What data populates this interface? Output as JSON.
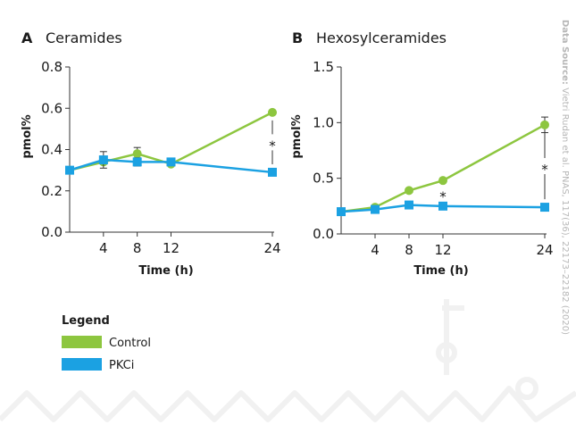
{
  "colors": {
    "control": "#8dc63f",
    "pkci": "#1ba1e2",
    "axis": "#333333",
    "deco": "#f1f1f1"
  },
  "source_note": {
    "label": "Data Source:",
    "text": "Vietri Rudan et al. PNAS, 117(36), 22173–22182 (2020)"
  },
  "legend": {
    "title": "Legend",
    "items": [
      {
        "label": "Control",
        "color": "#8dc63f"
      },
      {
        "label": "PKCi",
        "color": "#1ba1e2"
      }
    ]
  },
  "chart_data": [
    {
      "type": "line",
      "panel": "A",
      "title": "Ceramides",
      "xlabel": "Time (h)",
      "ylabel": "pmol%",
      "x": [
        0,
        4,
        8,
        12,
        24
      ],
      "xticks": [
        4,
        8,
        12,
        24
      ],
      "xticklabels": [
        "4",
        "8",
        "12",
        "24"
      ],
      "xlim": [
        0,
        24
      ],
      "ylim": [
        0.0,
        0.8
      ],
      "yticks": [
        0.0,
        0.2,
        0.4,
        0.6,
        0.8
      ],
      "yticklabels": [
        "0.0",
        "0.2",
        "0.4",
        "0.6",
        "0.8"
      ],
      "series": [
        {
          "name": "Control",
          "color": "#8dc63f",
          "marker": "circle",
          "values": [
            0.3,
            0.34,
            0.38,
            0.33,
            0.58
          ],
          "errors": [
            0,
            0,
            0.03,
            0,
            0
          ]
        },
        {
          "name": "PKCi",
          "color": "#1ba1e2",
          "marker": "square",
          "values": [
            0.3,
            0.35,
            0.34,
            0.34,
            0.29
          ],
          "errors": [
            0,
            0.04,
            0.02,
            0.01,
            0.015
          ]
        }
      ],
      "annotations": [
        {
          "x": 24,
          "text": "*"
        }
      ]
    },
    {
      "type": "line",
      "panel": "B",
      "title": "Hexosylceramides",
      "xlabel": "Time (h)",
      "ylabel": "pmol%",
      "x": [
        0,
        4,
        8,
        12,
        24
      ],
      "xticks": [
        4,
        8,
        12,
        24
      ],
      "xticklabels": [
        "4",
        "8",
        "12",
        "24"
      ],
      "xlim": [
        0,
        24
      ],
      "ylim": [
        0.0,
        1.5
      ],
      "yticks": [
        0.0,
        0.5,
        1.0,
        1.5
      ],
      "yticklabels": [
        "0.0",
        "0.5",
        "1.0",
        "1.5"
      ],
      "series": [
        {
          "name": "Control",
          "color": "#8dc63f",
          "marker": "circle",
          "values": [
            0.2,
            0.24,
            0.39,
            0.48,
            0.98
          ],
          "errors": [
            0,
            0,
            0,
            0,
            0.07
          ]
        },
        {
          "name": "PKCi",
          "color": "#1ba1e2",
          "marker": "square",
          "values": [
            0.2,
            0.22,
            0.26,
            0.25,
            0.24
          ],
          "errors": [
            0,
            0,
            0,
            0,
            0
          ]
        }
      ],
      "annotations": [
        {
          "x": 12,
          "text": "*"
        },
        {
          "x": 24,
          "text": "*"
        }
      ]
    }
  ]
}
